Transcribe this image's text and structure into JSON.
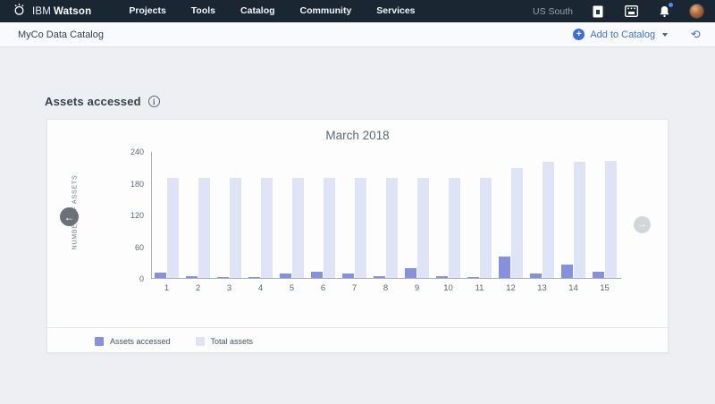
{
  "navbar": {
    "brand": {
      "ibm": "IBM",
      "product": "Watson"
    },
    "items": [
      {
        "label": "Projects"
      },
      {
        "label": "Tools"
      },
      {
        "label": "Catalog"
      },
      {
        "label": "Community"
      },
      {
        "label": "Services"
      }
    ],
    "region": "US South"
  },
  "subheader": {
    "breadcrumb": "MyCo Data Catalog",
    "add_to_catalog_label": "Add to Catalog"
  },
  "page": {
    "section_title": "Assets accessed"
  },
  "chart_data": {
    "type": "bar",
    "title": "March 2018",
    "xlabel": "",
    "ylabel": "NUMBER OF ASSETS",
    "ylim": [
      0,
      240
    ],
    "yticks": [
      0,
      60,
      120,
      180,
      240
    ],
    "grid": false,
    "legend_position": "bottom-left",
    "categories": [
      "1",
      "2",
      "3",
      "4",
      "5",
      "6",
      "7",
      "8",
      "9",
      "10",
      "11",
      "12",
      "13",
      "14",
      "15"
    ],
    "series": [
      {
        "name": "Assets accessed",
        "color": "#8691de",
        "values": [
          10,
          4,
          1,
          1,
          9,
          12,
          8,
          4,
          18,
          4,
          1,
          40,
          8,
          26,
          11
        ]
      },
      {
        "name": "Total assets",
        "color": "#dee3f6",
        "values": [
          190,
          190,
          190,
          190,
          190,
          190,
          190,
          190,
          190,
          190,
          190,
          208,
          220,
          220,
          221
        ]
      }
    ]
  },
  "icons": {
    "plus": "+",
    "caret": "down",
    "refresh": "⟳",
    "left_arrow": "←",
    "right_arrow": "→",
    "info": "i"
  },
  "colors": {
    "navbar_bg": "#1b2633",
    "accent_blue": "#3f6fd1",
    "accessed_bar": "#8691de",
    "total_bar": "#dee3f6"
  }
}
